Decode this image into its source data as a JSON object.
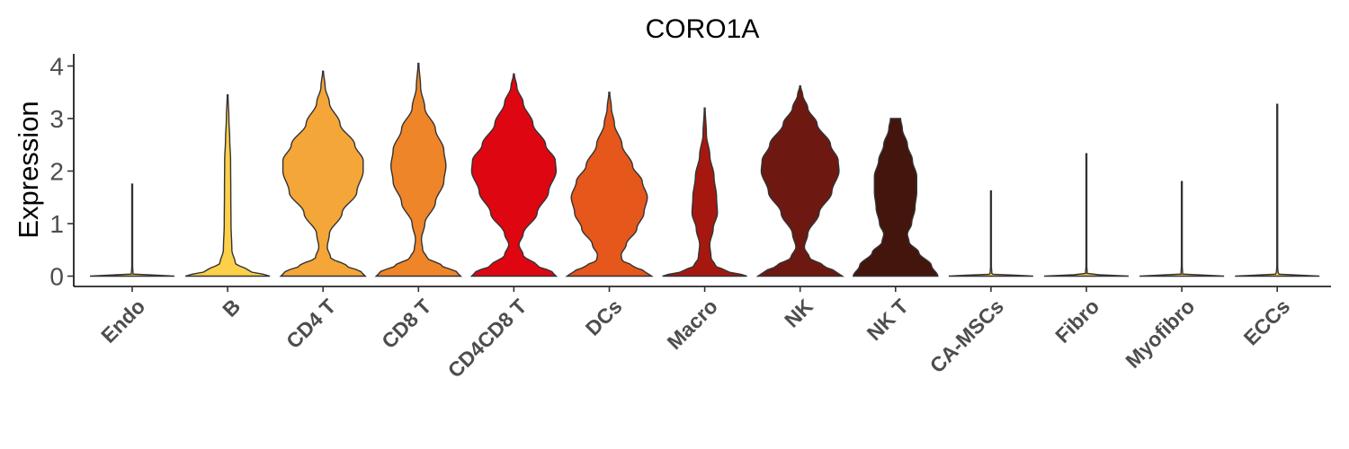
{
  "chart_data": {
    "type": "violin",
    "title": "CORO1A",
    "xlabel": "",
    "ylabel": "Expression",
    "ylim": [
      -0.18,
      4.22
    ],
    "yticks": [
      0,
      1,
      2,
      3,
      4
    ],
    "legend": "none",
    "grid": false,
    "categories": [
      "Endo",
      "B",
      "CD4 T",
      "CD8 T",
      "CD4CD8 T",
      "DCs",
      "Macro",
      "NK",
      "NK T",
      "CA-MSCs",
      "Fibro",
      "Myofibro",
      "ECCs"
    ],
    "series": [
      {
        "category": "Endo",
        "color": "#FFD24A",
        "max": 1.75,
        "profile": [
          [
            0,
            1.0
          ],
          [
            0.04,
            0.02
          ],
          [
            0.2,
            0.01
          ],
          [
            1.75,
            0.01
          ]
        ]
      },
      {
        "category": "B",
        "color": "#FCD04A",
        "max": 3.45,
        "profile": [
          [
            0,
            1.0
          ],
          [
            0.1,
            0.5
          ],
          [
            0.25,
            0.18
          ],
          [
            0.5,
            0.1
          ],
          [
            1.0,
            0.08
          ],
          [
            1.6,
            0.075
          ],
          [
            2.2,
            0.07
          ],
          [
            2.6,
            0.05
          ],
          [
            3.0,
            0.03
          ],
          [
            3.45,
            0.01
          ]
        ]
      },
      {
        "category": "CD4 T",
        "color": "#F5A638",
        "max": 3.9,
        "profile": [
          [
            0,
            1.0
          ],
          [
            0.08,
            0.9
          ],
          [
            0.2,
            0.55
          ],
          [
            0.35,
            0.18
          ],
          [
            0.55,
            0.1
          ],
          [
            0.8,
            0.15
          ],
          [
            1.2,
            0.45
          ],
          [
            1.6,
            0.8
          ],
          [
            2.0,
            0.95
          ],
          [
            2.2,
            0.95
          ],
          [
            2.5,
            0.75
          ],
          [
            2.9,
            0.4
          ],
          [
            3.3,
            0.15
          ],
          [
            3.6,
            0.05
          ],
          [
            3.9,
            0.01
          ]
        ]
      },
      {
        "category": "CD8 T",
        "color": "#EF8529",
        "max": 4.05,
        "profile": [
          [
            0,
            1.0
          ],
          [
            0.08,
            0.9
          ],
          [
            0.2,
            0.55
          ],
          [
            0.35,
            0.2
          ],
          [
            0.5,
            0.1
          ],
          [
            0.7,
            0.07
          ],
          [
            1.0,
            0.15
          ],
          [
            1.4,
            0.4
          ],
          [
            1.8,
            0.6
          ],
          [
            2.1,
            0.65
          ],
          [
            2.4,
            0.6
          ],
          [
            2.8,
            0.4
          ],
          [
            3.2,
            0.15
          ],
          [
            3.6,
            0.05
          ],
          [
            4.05,
            0.01
          ]
        ]
      },
      {
        "category": "CD4CD8 T",
        "color": "#DE0711",
        "max": 3.85,
        "profile": [
          [
            0,
            1.0
          ],
          [
            0.08,
            0.9
          ],
          [
            0.2,
            0.55
          ],
          [
            0.4,
            0.22
          ],
          [
            0.6,
            0.12
          ],
          [
            0.8,
            0.22
          ],
          [
            1.2,
            0.55
          ],
          [
            1.6,
            0.82
          ],
          [
            2.0,
            1.0
          ],
          [
            2.2,
            0.98
          ],
          [
            2.5,
            0.75
          ],
          [
            2.9,
            0.45
          ],
          [
            3.3,
            0.22
          ],
          [
            3.6,
            0.07
          ],
          [
            3.85,
            0.01
          ]
        ]
      },
      {
        "category": "DCs",
        "color": "#E5571B",
        "max": 3.5,
        "profile": [
          [
            0,
            1.0
          ],
          [
            0.08,
            0.85
          ],
          [
            0.2,
            0.55
          ],
          [
            0.3,
            0.3
          ],
          [
            0.4,
            0.28
          ],
          [
            0.6,
            0.4
          ],
          [
            0.9,
            0.65
          ],
          [
            1.2,
            0.82
          ],
          [
            1.5,
            0.9
          ],
          [
            1.8,
            0.78
          ],
          [
            2.1,
            0.55
          ],
          [
            2.5,
            0.3
          ],
          [
            2.9,
            0.12
          ],
          [
            3.2,
            0.05
          ],
          [
            3.5,
            0.01
          ]
        ]
      },
      {
        "category": "Macro",
        "color": "#A6180F",
        "max": 3.2,
        "profile": [
          [
            0,
            1.0
          ],
          [
            0.1,
            0.5
          ],
          [
            0.2,
            0.25
          ],
          [
            0.35,
            0.15
          ],
          [
            0.6,
            0.12
          ],
          [
            0.9,
            0.2
          ],
          [
            1.2,
            0.3
          ],
          [
            1.5,
            0.28
          ],
          [
            1.9,
            0.22
          ],
          [
            2.3,
            0.12
          ],
          [
            2.7,
            0.04
          ],
          [
            3.2,
            0.01
          ]
        ]
      },
      {
        "category": "NK",
        "color": "#6D1811",
        "max": 3.62,
        "profile": [
          [
            0,
            1.0
          ],
          [
            0.08,
            0.85
          ],
          [
            0.2,
            0.55
          ],
          [
            0.35,
            0.22
          ],
          [
            0.55,
            0.1
          ],
          [
            0.8,
            0.18
          ],
          [
            1.2,
            0.45
          ],
          [
            1.6,
            0.75
          ],
          [
            2.0,
            0.92
          ],
          [
            2.2,
            0.9
          ],
          [
            2.5,
            0.72
          ],
          [
            2.9,
            0.4
          ],
          [
            3.2,
            0.18
          ],
          [
            3.45,
            0.06
          ],
          [
            3.62,
            0.01
          ]
        ]
      },
      {
        "category": "NK T",
        "color": "#43150D",
        "max": 3.0,
        "profile": [
          [
            0,
            1.0
          ],
          [
            0.2,
            0.85
          ],
          [
            0.45,
            0.55
          ],
          [
            0.65,
            0.32
          ],
          [
            0.8,
            0.28
          ],
          [
            1.0,
            0.38
          ],
          [
            1.3,
            0.46
          ],
          [
            1.6,
            0.5
          ],
          [
            1.9,
            0.5
          ],
          [
            2.2,
            0.4
          ],
          [
            2.5,
            0.28
          ],
          [
            2.8,
            0.16
          ],
          [
            3.0,
            0.12
          ]
        ]
      },
      {
        "category": "CA-MSCs",
        "color": "#FFD24A",
        "max": 1.62,
        "profile": [
          [
            0,
            1.0
          ],
          [
            0.04,
            0.02
          ],
          [
            0.2,
            0.01
          ],
          [
            1.62,
            0.01
          ]
        ]
      },
      {
        "category": "Fibro",
        "color": "#FFD24A",
        "max": 2.33,
        "profile": [
          [
            0,
            1.0
          ],
          [
            0.04,
            0.02
          ],
          [
            0.2,
            0.01
          ],
          [
            2.33,
            0.01
          ]
        ]
      },
      {
        "category": "Myofibro",
        "color": "#FFD24A",
        "max": 1.8,
        "profile": [
          [
            0,
            1.0
          ],
          [
            0.04,
            0.02
          ],
          [
            0.2,
            0.01
          ],
          [
            1.8,
            0.01
          ]
        ]
      },
      {
        "category": "ECCs",
        "color": "#FFD24A",
        "max": 3.27,
        "profile": [
          [
            0,
            1.0
          ],
          [
            0.04,
            0.02
          ],
          [
            0.2,
            0.01
          ],
          [
            3.27,
            0.01
          ]
        ]
      }
    ]
  }
}
